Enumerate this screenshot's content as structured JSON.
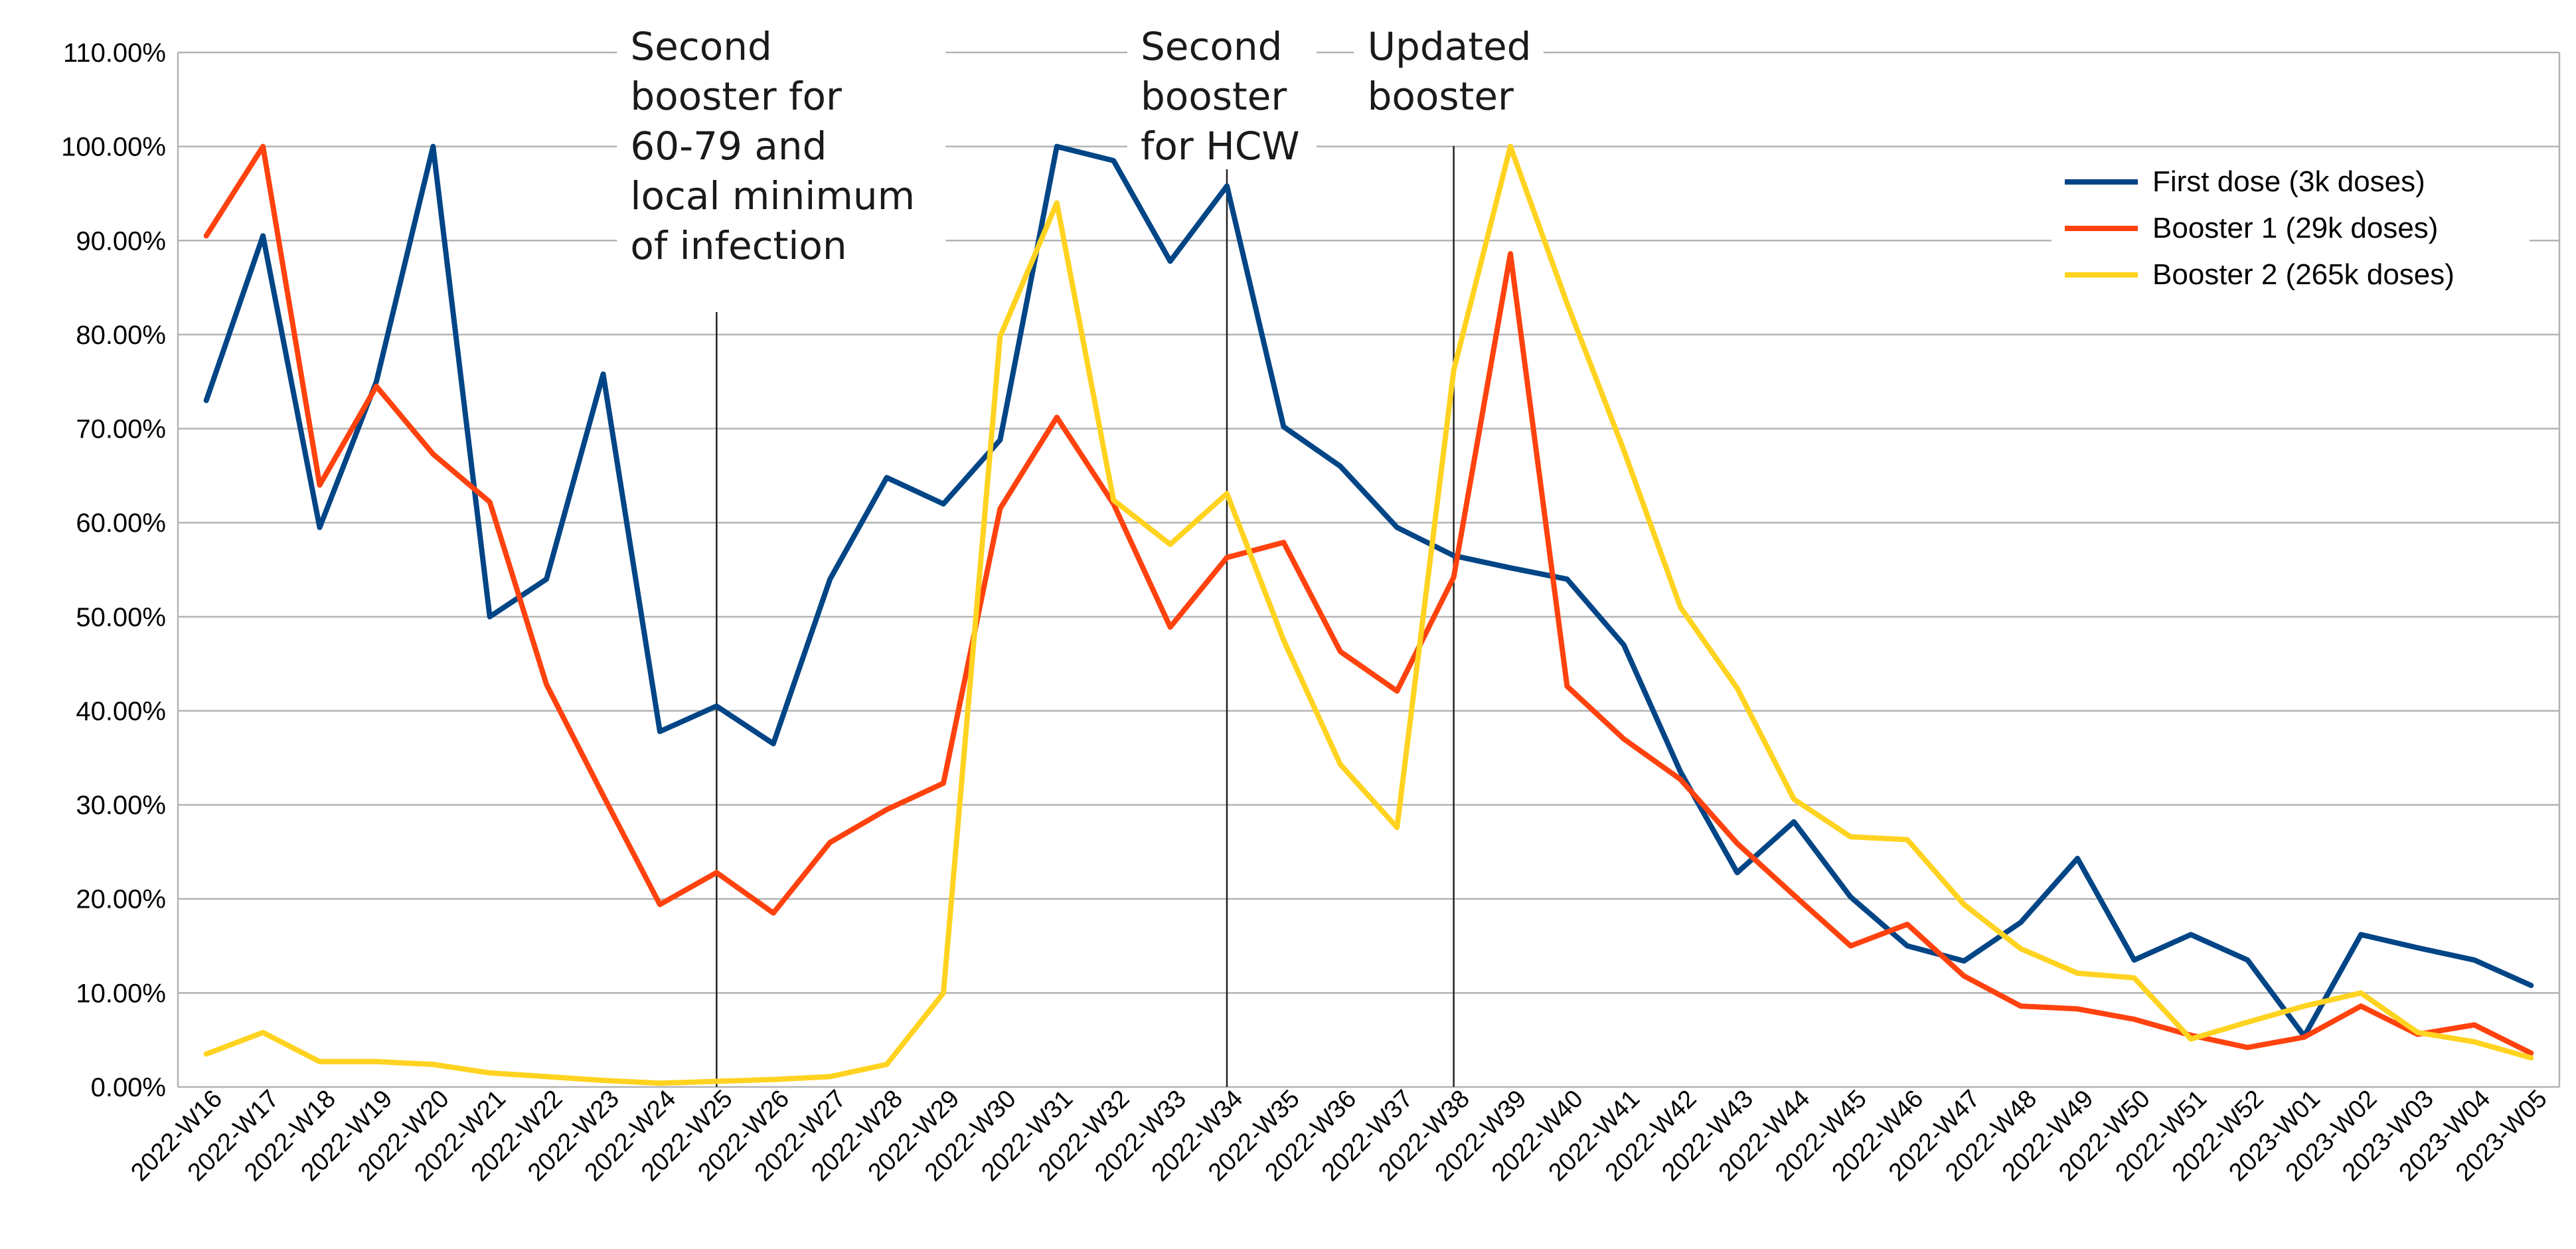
{
  "chart_data": {
    "type": "line",
    "title": "",
    "xlabel": "",
    "ylabel": "",
    "ylim": [
      0,
      110
    ],
    "ytick_step": 10,
    "ytick_format": "percent_2dp",
    "grid": true,
    "legend_position": "top-right",
    "categories": [
      "2022-W16",
      "2022-W17",
      "2022-W18",
      "2022-W19",
      "2022-W20",
      "2022-W21",
      "2022-W22",
      "2022-W23",
      "2022-W24",
      "2022-W25",
      "2022-W26",
      "2022-W27",
      "2022-W28",
      "2022-W29",
      "2022-W30",
      "2022-W31",
      "2022-W32",
      "2022-W33",
      "2022-W34",
      "2022-W35",
      "2022-W36",
      "2022-W37",
      "2022-W38",
      "2022-W39",
      "2022-W40",
      "2022-W41",
      "2022-W42",
      "2022-W43",
      "2022-W44",
      "2022-W45",
      "2022-W46",
      "2022-W47",
      "2022-W48",
      "2022-W49",
      "2022-W50",
      "2022-W51",
      "2022-W52",
      "2023-W01",
      "2023-W02",
      "2023-W03",
      "2023-W04",
      "2023-W05"
    ],
    "series": [
      {
        "name": "First dose (3k doses)",
        "color": "#004586",
        "values": [
          73,
          90.5,
          59.5,
          75,
          100,
          50,
          54,
          75.8,
          37.8,
          40.5,
          36.5,
          54,
          64.8,
          62,
          68.8,
          100,
          98.5,
          87.8,
          95.8,
          70.2,
          66,
          59.5,
          56.5,
          55.2,
          54,
          47,
          33.5,
          22.8,
          28.2,
          20.2,
          15,
          13.4,
          17.5,
          24.3,
          13.5,
          16.2,
          13.5,
          5.4,
          16.2,
          14.8,
          13.5,
          10.8
        ]
      },
      {
        "name": "Booster 1 (29k doses)",
        "color": "#ff420e",
        "values": [
          90.5,
          100,
          64,
          74.5,
          67.3,
          62.2,
          42.8,
          31,
          19.4,
          22.8,
          18.5,
          26,
          29.5,
          32.3,
          61.5,
          71.2,
          62,
          48.9,
          56.3,
          57.9,
          46.3,
          42.1,
          54.2,
          88.6,
          42.6,
          37,
          32.7,
          25.9,
          20.4,
          15,
          17.3,
          11.8,
          8.6,
          8.3,
          7.2,
          5.5,
          4.2,
          5.3,
          8.6,
          5.6,
          6.6,
          3.6
        ]
      },
      {
        "name": "Booster 2 (265k doses)",
        "color": "#ffd320",
        "values": [
          3.5,
          5.8,
          2.7,
          2.7,
          2.4,
          1.5,
          1.1,
          0.7,
          0.4,
          0.6,
          0.8,
          1.1,
          2.4,
          10,
          79.8,
          94,
          62.4,
          57.7,
          63.1,
          47.5,
          34.3,
          27.6,
          76.2,
          100,
          83.3,
          67.7,
          51,
          42.4,
          30.6,
          26.6,
          26.3,
          19.4,
          14.7,
          12.1,
          11.6,
          5.1,
          6.9,
          8.6,
          10,
          5.8,
          4.8,
          3.1
        ]
      }
    ],
    "annotations": [
      {
        "at": "2022-W25",
        "lines": [
          "Second",
          "booster for",
          "60-79 and",
          "local minimum",
          "of infection"
        ]
      },
      {
        "at": "2022-W34",
        "lines": [
          "Second",
          "booster",
          "for HCW"
        ]
      },
      {
        "at": "2022-W38",
        "lines": [
          "Updated",
          "booster"
        ]
      }
    ]
  }
}
